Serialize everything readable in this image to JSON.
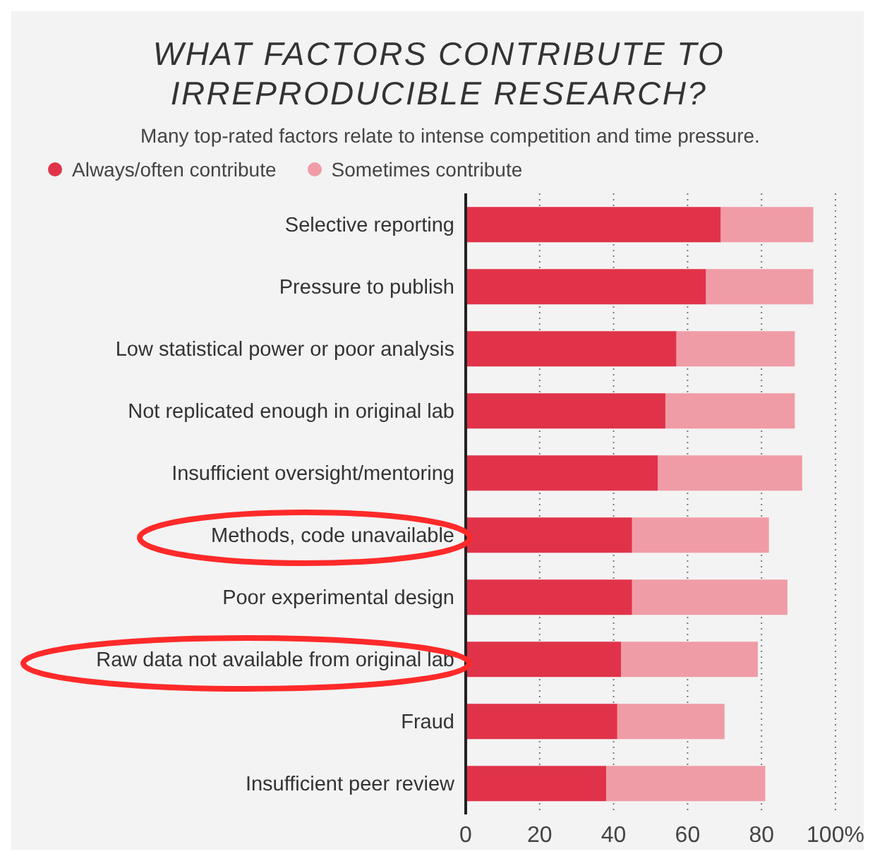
{
  "chart_data": {
    "type": "bar",
    "orientation": "horizontal",
    "stacked": true,
    "title": "WHAT FACTORS CONTRIBUTE TO IRREPRODUCIBLE RESEARCH?",
    "subtitle": "Many top-rated factors relate to intense competition and time pressure.",
    "categories": [
      "Selective reporting",
      "Pressure to publish",
      "Low statistical power or poor analysis",
      "Not replicated enough in original lab",
      "Insufficient oversight/mentoring",
      "Methods, code unavailable",
      "Poor experimental design",
      "Raw data not available from original lab",
      "Fraud",
      "Insufficient peer review"
    ],
    "series": [
      {
        "name": "Always/often contribute",
        "color": "#e0334a",
        "values": [
          69,
          65,
          57,
          54,
          52,
          45,
          45,
          42,
          41,
          38
        ]
      },
      {
        "name": "Sometimes contribute",
        "color": "#f09ca6",
        "values": [
          25,
          29,
          32,
          35,
          39,
          37,
          42,
          37,
          29,
          43
        ]
      }
    ],
    "xlim": [
      0,
      100
    ],
    "xticks": [
      0,
      20,
      40,
      60,
      80,
      {
        "value": 100,
        "label": "100%"
      }
    ],
    "grid": "x",
    "legend": "top left"
  }
}
